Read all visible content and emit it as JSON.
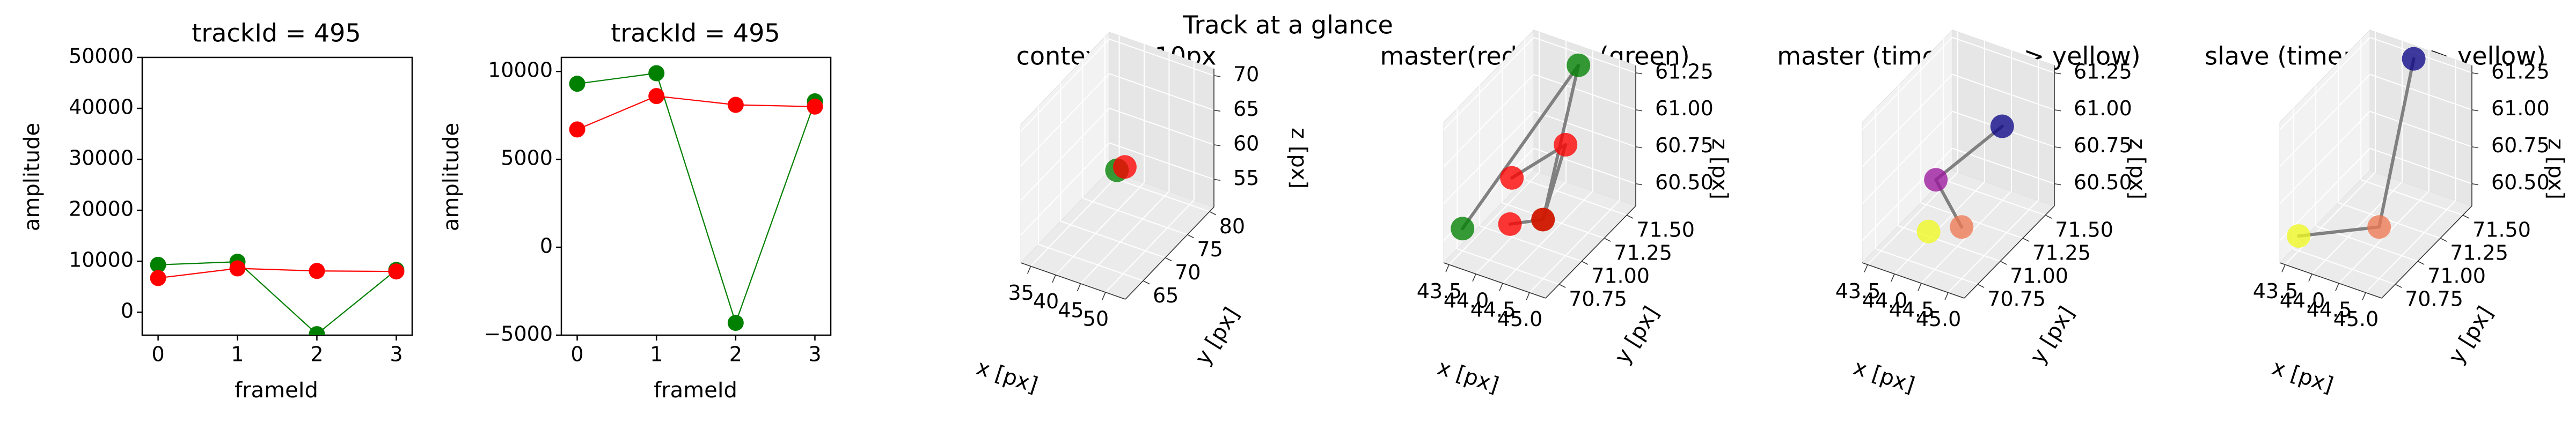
{
  "figure_title": "Track at a glance",
  "colors": {
    "master": "#ff0000",
    "slave": "#008000",
    "pane_left": "#f2f2f2",
    "pane_right": "#e6e6e6",
    "pane_floor": "#ebebeb",
    "connector": "#808080"
  },
  "chart_data": [
    {
      "type": "line",
      "title": "trackId = 495",
      "xlabel": "frameId",
      "ylabel": "amplitude",
      "x": [
        0,
        1,
        2,
        3
      ],
      "xticks": [
        "0",
        "1",
        "2",
        "3"
      ],
      "yticks": [
        "0",
        "10000",
        "20000",
        "30000",
        "40000",
        "50000"
      ],
      "ylim": [
        -4500,
        50000
      ],
      "series": [
        {
          "color": "#008000",
          "values": [
            9300,
            9900,
            -4300,
            8300
          ]
        },
        {
          "color": "#ff0000",
          "values": [
            6700,
            8600,
            8100,
            8000
          ]
        }
      ]
    },
    {
      "type": "line",
      "title": "trackId = 495",
      "xlabel": "frameId",
      "ylabel": "amplitude",
      "x": [
        0,
        1,
        2,
        3
      ],
      "xticks": [
        "0",
        "1",
        "2",
        "3"
      ],
      "yticks": [
        "−5000",
        "0",
        "5000",
        "10000"
      ],
      "ylim": [
        -5000,
        10800
      ],
      "series": [
        {
          "color": "#008000",
          "values": [
            9300,
            9900,
            -4300,
            8300
          ]
        },
        {
          "color": "#ff0000",
          "values": [
            6700,
            8600,
            8100,
            8000
          ]
        }
      ]
    },
    {
      "type": "scatter3d",
      "title": "context +- 10px",
      "xlabel": "x [px]",
      "ylabel": "y [px]",
      "zlabel": "z [px]",
      "xticks": [
        "35",
        "40",
        "45",
        "50"
      ],
      "yticks": [
        "65",
        "70",
        "75",
        "80"
      ],
      "zticks": [
        "55",
        "60",
        "65",
        "70"
      ],
      "xlim": [
        33,
        54
      ],
      "ylim": [
        61,
        81
      ],
      "zlim": [
        51,
        71
      ],
      "points": [
        {
          "x": 43.6,
          "y": 70.8,
          "z": 60.5,
          "color": "#008000"
        },
        {
          "x": 45.0,
          "y": 71.0,
          "z": 61.2,
          "color": "#ff0000"
        }
      ]
    },
    {
      "type": "scatter3d",
      "title": "master(red) slave(green)",
      "xlabel": "x [px]",
      "ylabel": "y [px]",
      "zlabel": "z [px]",
      "xticks": [
        "43.5",
        "44.0",
        "44.5",
        "45.0"
      ],
      "yticks": [
        "70.75",
        "71.00",
        "71.25",
        "71.50"
      ],
      "zticks": [
        "60.50",
        "60.75",
        "61.00",
        "61.25"
      ],
      "xlim": [
        43.4,
        45.3
      ],
      "ylim": [
        70.6,
        71.6
      ],
      "zlim": [
        60.35,
        61.3
      ],
      "points": [
        {
          "x": 43.5,
          "y": 70.75,
          "z": 60.5,
          "color": "#008000"
        },
        {
          "x": 44.4,
          "y": 71.5,
          "z": 61.25,
          "color": "#008000"
        },
        {
          "x": 45.0,
          "y": 70.75,
          "z": 60.75,
          "color": "#008000"
        },
        {
          "x": 44.0,
          "y": 71.0,
          "z": 60.75,
          "color": "#ff0000"
        },
        {
          "x": 45.0,
          "y": 71.0,
          "z": 61.1,
          "color": "#ff0000"
        },
        {
          "x": 44.3,
          "y": 70.8,
          "z": 60.6,
          "color": "#ff0000"
        },
        {
          "x": 45.0,
          "y": 70.75,
          "z": 60.75,
          "color": "#ff0000"
        }
      ],
      "segments": [
        [
          0,
          1
        ],
        [
          1,
          2
        ],
        [
          3,
          4
        ],
        [
          4,
          6
        ],
        [
          5,
          6
        ]
      ]
    },
    {
      "type": "scatter3d",
      "title": "master (time: blue -> yellow)",
      "xlabel": "x [px]",
      "ylabel": "y [px]",
      "zlabel": "z [px]",
      "xticks": [
        "43.5",
        "44.0",
        "44.5",
        "45.0"
      ],
      "yticks": [
        "70.75",
        "71.00",
        "71.25",
        "71.50"
      ],
      "zticks": [
        "60.50",
        "60.75",
        "61.00",
        "61.25"
      ],
      "xlim": [
        43.4,
        45.3
      ],
      "ylim": [
        70.6,
        71.6
      ],
      "zlim": [
        60.35,
        61.3
      ],
      "points": [
        {
          "x": 45.0,
          "y": 71.2,
          "z": 61.1,
          "color": "#0d0887"
        },
        {
          "x": 44.1,
          "y": 71.0,
          "z": 60.75,
          "color": "#9c179e"
        },
        {
          "x": 45.0,
          "y": 70.75,
          "z": 60.7,
          "color": "#ed7953"
        },
        {
          "x": 44.3,
          "y": 70.8,
          "z": 60.55,
          "color": "#f0f921"
        }
      ],
      "segments": [
        [
          0,
          1
        ],
        [
          1,
          2
        ]
      ]
    },
    {
      "type": "scatter3d",
      "title": "slave (time: blue -> yellow)",
      "xlabel": "x [px]",
      "ylabel": "y [px]",
      "zlabel": "z [px]",
      "xticks": [
        "43.5",
        "44.0",
        "44.5",
        "45.0"
      ],
      "yticks": [
        "70.75",
        "71.00",
        "71.25",
        "71.50"
      ],
      "zticks": [
        "60.50",
        "60.75",
        "61.00",
        "61.25"
      ],
      "xlim": [
        43.4,
        45.3
      ],
      "ylim": [
        70.6,
        71.6
      ],
      "zlim": [
        60.35,
        61.3
      ],
      "points": [
        {
          "x": 44.3,
          "y": 71.55,
          "z": 61.25,
          "color": "#0d0887"
        },
        {
          "x": 45.0,
          "y": 70.75,
          "z": 60.7,
          "color": "#ed7953"
        },
        {
          "x": 43.5,
          "y": 70.75,
          "z": 60.45,
          "color": "#f0f921"
        }
      ],
      "segments": [
        [
          0,
          1
        ],
        [
          1,
          2
        ]
      ]
    }
  ]
}
